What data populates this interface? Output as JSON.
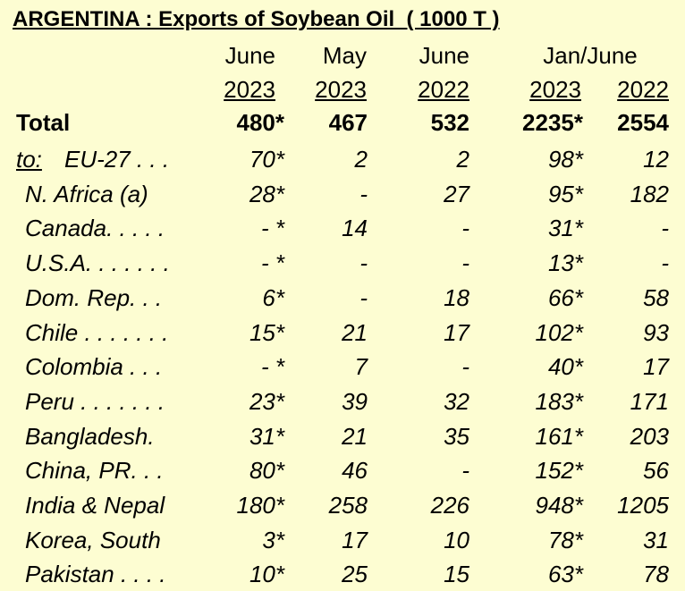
{
  "title": "ARGENTINA : Exports of Soybean Oil  ( 1000 T )",
  "header": {
    "months": [
      "June",
      "May",
      "June",
      "Jan/June"
    ],
    "years": [
      "2023",
      "2023",
      "2022",
      "2023",
      "2022"
    ]
  },
  "total": {
    "label": "Total",
    "values": [
      "480*",
      "467",
      "532",
      "2235*",
      "2554"
    ]
  },
  "rows": [
    {
      "prefix": "to:",
      "label": "EU-27 . . .",
      "values": [
        "70*",
        "2",
        "2",
        "98*",
        "12"
      ]
    },
    {
      "label": "N. Africa (a)",
      "values": [
        "28*",
        "-",
        "27",
        "95*",
        "182"
      ]
    },
    {
      "label": "Canada. . . . .",
      "values": [
        "- *",
        "14",
        "-",
        "31*",
        "-"
      ]
    },
    {
      "label": "U.S.A. . . . . . .",
      "values": [
        "- *",
        "-",
        "-",
        "13*",
        "-"
      ]
    },
    {
      "label": "Dom. Rep. . .",
      "values": [
        "6*",
        "-",
        "18",
        "66*",
        "58"
      ]
    },
    {
      "label": "Chile . . . . . . .",
      "values": [
        "15*",
        "21",
        "17",
        "102*",
        "93"
      ]
    },
    {
      "label": "Colombia . . .",
      "values": [
        "- *",
        "7",
        "-",
        "40*",
        "17"
      ]
    },
    {
      "label": "Peru . . . . . . .",
      "values": [
        "23*",
        "39",
        "32",
        "183*",
        "171"
      ]
    },
    {
      "label": "Bangladesh.",
      "values": [
        "31*",
        "21",
        "35",
        "161*",
        "203"
      ]
    },
    {
      "label": "China, PR. . .",
      "values": [
        "80*",
        "46",
        "-",
        "152*",
        "56"
      ]
    },
    {
      "label": "India & Nepal",
      "values": [
        "180*",
        "258",
        "226",
        "948*",
        "1205"
      ]
    },
    {
      "label": "Korea, South",
      "values": [
        "3*",
        "17",
        "10",
        "78*",
        "31"
      ]
    },
    {
      "label": "Pakistan . . . .",
      "values": [
        "10*",
        "25",
        "15",
        "63*",
        "78"
      ]
    }
  ]
}
